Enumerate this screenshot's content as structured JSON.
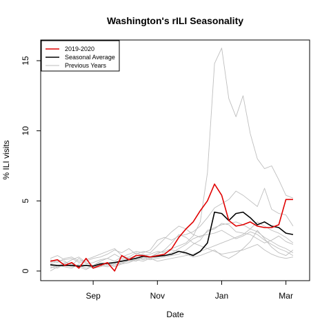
{
  "chart_data": {
    "type": "line",
    "title": "Washington's rILI Seasonality",
    "xlabel": "Date",
    "ylabel": "% ILI visits",
    "xlim": [
      0,
      35
    ],
    "ylim": [
      -0.6,
      16.5
    ],
    "x_ticks": [
      {
        "x": 6,
        "label": "Sep"
      },
      {
        "x": 15,
        "label": "Nov"
      },
      {
        "x": 24,
        "label": "Jan"
      },
      {
        "x": 33,
        "label": "Mar"
      }
    ],
    "y_ticks": [
      0,
      5,
      10,
      15
    ],
    "legend": {
      "position": "top-left",
      "entries": [
        {
          "label": "2019-2020",
          "color": "#e00000"
        },
        {
          "label": "Seasonal Average",
          "color": "#000000"
        },
        {
          "label": "Previous Years",
          "color": "#bebebe"
        }
      ]
    },
    "series": [
      {
        "name": "2019-2020",
        "color": "#e00000",
        "width": 1.6,
        "x": [
          0,
          1,
          2,
          3,
          4,
          5,
          6,
          7,
          8,
          9,
          10,
          11,
          12,
          13,
          14,
          15,
          16,
          17,
          18,
          19,
          20,
          21,
          22,
          23,
          24,
          25,
          26,
          27,
          28,
          29,
          30,
          31,
          32,
          33,
          34
        ],
        "y": [
          0.7,
          0.8,
          0.4,
          0.6,
          0.2,
          0.9,
          0.2,
          0.4,
          0.6,
          0.0,
          1.1,
          0.8,
          1.1,
          1.1,
          1.0,
          1.1,
          1.2,
          1.6,
          2.4,
          3.0,
          3.5,
          4.3,
          5.0,
          6.2,
          5.4,
          3.6,
          3.2,
          3.3,
          3.5,
          3.2,
          3.1,
          3.1,
          3.3,
          5.1,
          5.1
        ]
      },
      {
        "name": "Seasonal Average",
        "color": "#000000",
        "width": 1.6,
        "x": [
          0,
          1,
          2,
          3,
          4,
          5,
          6,
          7,
          8,
          9,
          10,
          11,
          12,
          13,
          14,
          15,
          16,
          17,
          18,
          19,
          20,
          21,
          22,
          23,
          24,
          25,
          26,
          27,
          28,
          29,
          30,
          31,
          32,
          33,
          34
        ],
        "y": [
          0.45,
          0.4,
          0.4,
          0.4,
          0.35,
          0.4,
          0.35,
          0.5,
          0.55,
          0.6,
          0.7,
          0.8,
          0.9,
          1.05,
          1.0,
          1.05,
          1.1,
          1.2,
          1.4,
          1.3,
          1.1,
          1.4,
          2.0,
          4.2,
          4.1,
          3.6,
          4.1,
          4.2,
          3.8,
          3.3,
          3.5,
          3.2,
          3.1,
          2.7,
          2.6
        ]
      },
      {
        "name": "",
        "color": "#bebebe",
        "width": 0.9,
        "x": [
          0,
          1,
          2,
          3,
          4,
          5,
          6,
          7,
          8,
          9,
          10,
          11,
          12,
          13,
          14,
          15,
          16,
          17,
          18,
          19,
          20,
          21,
          22,
          23,
          24,
          25,
          26,
          27,
          28,
          29,
          30,
          31,
          32,
          33,
          34
        ],
        "y": [
          0.3,
          0.2,
          0.5,
          0.3,
          0.4,
          0.2,
          0.3,
          0.5,
          0.4,
          0.6,
          0.8,
          0.9,
          1.1,
          1.2,
          1.0,
          1.3,
          1.4,
          1.6,
          1.8,
          2.0,
          2.5,
          3.5,
          7.0,
          14.8,
          15.9,
          12.3,
          11.0,
          12.5,
          9.8,
          8.0,
          7.3,
          7.5,
          6.5,
          5.4,
          5.2
        ]
      },
      {
        "name": "",
        "color": "#bebebe",
        "width": 0.9,
        "x": [
          0,
          1,
          2,
          3,
          4,
          5,
          6,
          7,
          8,
          9,
          10,
          11,
          12,
          13,
          14,
          15,
          16,
          17,
          18,
          19,
          20,
          21,
          22,
          23,
          24,
          25,
          26,
          27,
          28,
          29,
          30,
          31,
          32,
          33,
          34
        ],
        "y": [
          0.6,
          0.8,
          0.7,
          0.4,
          0.9,
          0.5,
          0.6,
          0.8,
          0.9,
          0.7,
          1.0,
          1.2,
          1.4,
          1.3,
          1.5,
          2.2,
          2.4,
          2.2,
          2.5,
          2.6,
          2.8,
          3.2,
          3.8,
          4.5,
          4.8,
          5.1,
          5.7,
          5.4,
          5.0,
          4.6,
          5.9,
          4.4,
          4.1,
          4.0,
          3.2
        ]
      },
      {
        "name": "",
        "color": "#bebebe",
        "width": 0.9,
        "x": [
          0,
          1,
          2,
          3,
          4,
          5,
          6,
          7,
          8,
          9,
          10,
          11,
          12,
          13,
          14,
          15,
          16,
          17,
          18,
          19,
          20,
          21,
          22,
          23,
          24,
          25,
          26,
          27,
          28,
          29,
          30,
          31,
          32,
          33,
          34
        ],
        "y": [
          0.9,
          1.1,
          0.8,
          0.9,
          0.6,
          0.7,
          0.9,
          1.0,
          1.2,
          1.5,
          1.3,
          1.6,
          1.2,
          1.4,
          1.3,
          1.8,
          2.3,
          2.8,
          3.2,
          3.0,
          2.6,
          2.4,
          2.8,
          3.1,
          3.3,
          3.4,
          3.5,
          3.3,
          3.0,
          2.8,
          2.4,
          2.1,
          1.8,
          1.6,
          1.3
        ]
      },
      {
        "name": "",
        "color": "#bebebe",
        "width": 0.9,
        "x": [
          0,
          1,
          2,
          3,
          4,
          5,
          6,
          7,
          8,
          9,
          10,
          11,
          12,
          13,
          14,
          15,
          16,
          17,
          18,
          19,
          20,
          21,
          22,
          23,
          24,
          25,
          26,
          27,
          28,
          29,
          30,
          31,
          32,
          33,
          34
        ],
        "y": [
          0.4,
          0.3,
          0.6,
          0.5,
          0.3,
          0.4,
          0.2,
          0.3,
          0.5,
          0.4,
          0.6,
          0.7,
          0.8,
          0.9,
          0.8,
          0.9,
          1.0,
          1.1,
          1.2,
          1.5,
          1.9,
          2.2,
          2.9,
          3.0,
          3.4,
          3.3,
          2.8,
          2.7,
          2.6,
          2.3,
          2.0,
          2.2,
          2.5,
          2.1,
          1.9
        ]
      },
      {
        "name": "",
        "color": "#bebebe",
        "width": 0.9,
        "x": [
          0,
          1,
          2,
          3,
          4,
          5,
          6,
          7,
          8,
          9,
          10,
          11,
          12,
          13,
          14,
          15,
          16,
          17,
          18,
          19,
          20,
          21,
          22,
          23,
          24,
          25,
          26,
          27,
          28,
          29,
          30,
          31,
          32,
          33,
          34
        ],
        "y": [
          0.2,
          0.4,
          0.3,
          0.2,
          0.5,
          0.4,
          0.3,
          0.4,
          0.3,
          0.5,
          0.5,
          0.6,
          0.8,
          0.7,
          0.9,
          1.0,
          1.1,
          1.3,
          1.6,
          1.9,
          2.3,
          2.5,
          2.6,
          2.7,
          2.9,
          2.6,
          2.3,
          2.5,
          2.8,
          2.6,
          2.2,
          1.9,
          1.6,
          1.4,
          1.1
        ]
      },
      {
        "name": "",
        "color": "#bebebe",
        "width": 0.9,
        "x": [
          0,
          1,
          2,
          3,
          4,
          5,
          6,
          7,
          8,
          9,
          10,
          11,
          12,
          13,
          14,
          15,
          16,
          17,
          18,
          19,
          20,
          21,
          22,
          23,
          24,
          25,
          26,
          27,
          28,
          29,
          30,
          31,
          32,
          33,
          34
        ],
        "y": [
          0.0,
          0.3,
          0.4,
          0.6,
          0.3,
          0.1,
          0.4,
          0.6,
          0.5,
          0.3,
          0.5,
          0.8,
          0.7,
          1.0,
          0.9,
          0.7,
          0.8,
          0.9,
          1.0,
          1.1,
          1.2,
          1.4,
          1.6,
          1.8,
          2.0,
          2.2,
          2.4,
          2.6,
          3.0,
          3.5,
          3.2,
          2.9,
          2.7,
          2.4,
          2.0
        ]
      },
      {
        "name": "",
        "color": "#bebebe",
        "width": 0.9,
        "x": [
          0,
          1,
          2,
          3,
          4,
          5,
          6,
          7,
          8,
          9,
          10,
          11,
          12,
          13,
          14,
          15,
          16,
          17,
          18,
          19,
          20,
          21,
          22,
          23,
          24,
          25,
          26,
          27,
          28,
          29,
          30,
          31,
          32,
          33,
          34
        ],
        "y": [
          0.8,
          0.6,
          0.9,
          1.0,
          0.7,
          0.8,
          1.0,
          1.2,
          1.4,
          1.6,
          1.1,
          0.9,
          1.0,
          0.8,
          1.0,
          1.2,
          1.5,
          2.0,
          2.6,
          2.4,
          2.0,
          1.8,
          1.6,
          1.4,
          1.2,
          1.3,
          1.4,
          1.5,
          1.7,
          1.9,
          1.5,
          1.2,
          1.0,
          0.9,
          1.0
        ]
      },
      {
        "name": "",
        "color": "#bebebe",
        "width": 0.9,
        "x": [
          0,
          1,
          2,
          3,
          4,
          5,
          6,
          7,
          8,
          9,
          10,
          11,
          12,
          13,
          14,
          15,
          16,
          17,
          18,
          19,
          20,
          21,
          22,
          23,
          24,
          25,
          26,
          27,
          28,
          29,
          30,
          31,
          32,
          33,
          34
        ],
        "y": [
          0.5,
          0.7,
          0.5,
          0.8,
          1.0,
          0.6,
          0.4,
          0.7,
          0.9,
          1.2,
          0.9,
          1.0,
          1.3,
          1.1,
          1.2,
          1.4,
          1.3,
          1.5,
          1.4,
          1.2,
          1.0,
          1.1,
          1.3,
          1.5,
          1.1,
          0.9,
          1.2,
          1.6,
          2.1,
          2.9,
          2.3,
          1.7,
          1.3,
          1.1,
          1.5
        ]
      }
    ]
  }
}
